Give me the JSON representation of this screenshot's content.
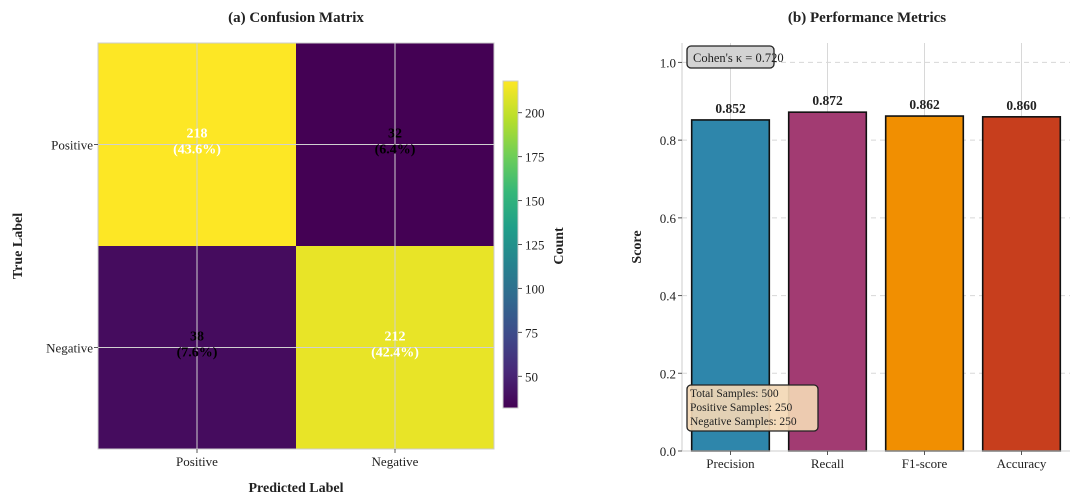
{
  "chart_data": [
    {
      "type": "heatmap",
      "title": "(a) Confusion Matrix",
      "xlabel": "Predicted Label",
      "ylabel": "True Label",
      "x_categories": [
        "Positive",
        "Negative"
      ],
      "y_categories": [
        "Positive",
        "Negative"
      ],
      "values": [
        [
          218,
          32
        ],
        [
          38,
          212
        ]
      ],
      "cell_labels": [
        [
          "218",
          "(43.6%)",
          "32",
          "(6.4%)"
        ],
        [
          "38",
          "(7.6%)",
          "212",
          "(42.4%)"
        ]
      ],
      "colormap": "viridis",
      "colorbar": {
        "label": "Count",
        "range": [
          32,
          218
        ],
        "ticks": [
          50,
          75,
          100,
          125,
          150,
          175,
          200
        ],
        "tick_labels": [
          "50",
          "75",
          "100",
          "125",
          "150",
          "175",
          "200"
        ]
      },
      "grid": true
    },
    {
      "type": "bar",
      "title": "(b) Performance Metrics",
      "xlabel": "",
      "ylabel": "Score",
      "categories": [
        "Precision",
        "Recall",
        "F1-score",
        "Accuracy"
      ],
      "values": [
        0.852,
        0.872,
        0.862,
        0.86
      ],
      "value_labels": [
        "0.852",
        "0.872",
        "0.862",
        "0.860"
      ],
      "colors": [
        "#2E86AB",
        "#A23B72",
        "#F18F01",
        "#C73E1D"
      ],
      "ylim": [
        0,
        1.05
      ],
      "yticks": [
        0.0,
        0.2,
        0.4,
        0.6,
        0.8,
        1.0
      ],
      "ytick_labels": [
        "0.0",
        "0.2",
        "0.4",
        "0.6",
        "0.8",
        "1.0"
      ],
      "grid": true,
      "annotations": {
        "kappa": "Cohen's κ = 0.720",
        "samples": [
          "Total Samples: 500",
          "Positive Samples: 250",
          "Negative Samples: 250"
        ]
      }
    }
  ]
}
